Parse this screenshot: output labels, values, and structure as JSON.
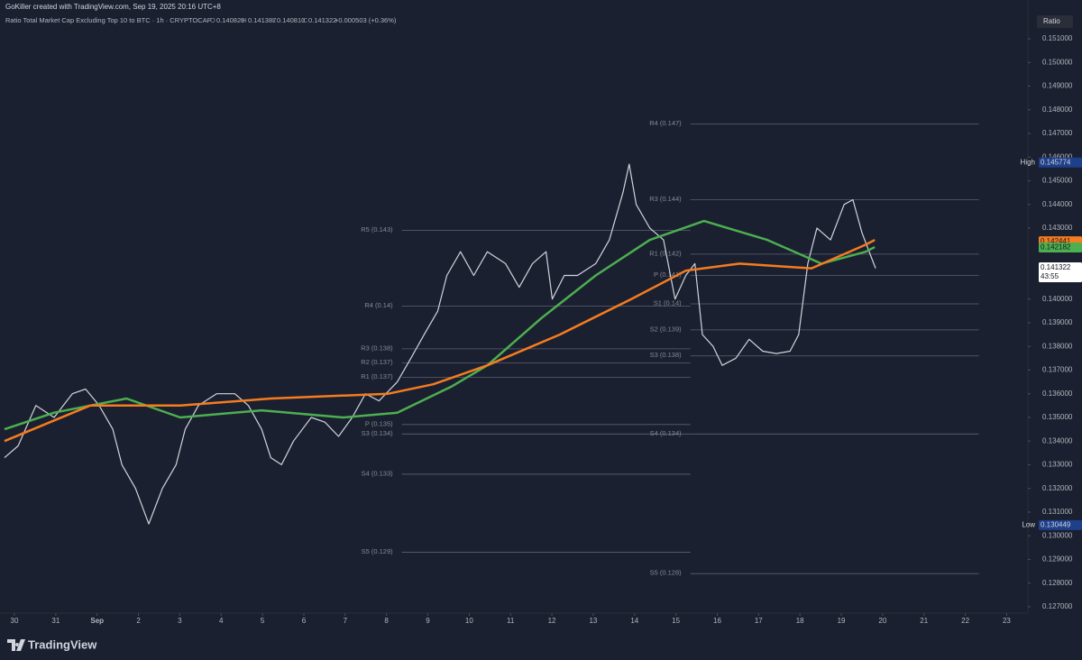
{
  "header": "GoKiller created with TradingView.com, Sep 19, 2025 20:16 UTC+8",
  "legend": {
    "title": "Ratio Total Market Cap Excluding Top 10 to BTC · 1h · CRYPTOCAP",
    "open_label": "O",
    "open": "0.140820",
    "high_label": "H",
    "high": "0.141387",
    "low_label": "L",
    "low": "0.140810",
    "close_label": "C",
    "close": "0.141322",
    "change": "+0.000503 (+0.36%)"
  },
  "footer": "TradingView",
  "chart_data": {
    "type": "line",
    "axis_label": "Ratio",
    "xlim": [
      -0.349,
      24.514
    ],
    "ylim": [
      0.12673,
      0.15264
    ],
    "xticks": [
      {
        "value": 0,
        "label": "30"
      },
      {
        "value": 1,
        "label": "31"
      },
      {
        "value": 2,
        "label": "Sep"
      },
      {
        "value": 3,
        "label": "2"
      },
      {
        "value": 4,
        "label": "3"
      },
      {
        "value": 5,
        "label": "4"
      },
      {
        "value": 6,
        "label": "5"
      },
      {
        "value": 7,
        "label": "6"
      },
      {
        "value": 8,
        "label": "7"
      },
      {
        "value": 9,
        "label": "8"
      },
      {
        "value": 10,
        "label": "9"
      },
      {
        "value": 11,
        "label": "10"
      },
      {
        "value": 12,
        "label": "11"
      },
      {
        "value": 13,
        "label": "12"
      },
      {
        "value": 14,
        "label": "13"
      },
      {
        "value": 15,
        "label": "14"
      },
      {
        "value": 16,
        "label": "15"
      },
      {
        "value": 17,
        "label": "16"
      },
      {
        "value": 18,
        "label": "17"
      },
      {
        "value": 19,
        "label": "18"
      },
      {
        "value": 20,
        "label": "19"
      },
      {
        "value": 21,
        "label": "20"
      },
      {
        "value": 22,
        "label": "21"
      },
      {
        "value": 23,
        "label": "22"
      },
      {
        "value": 24,
        "label": "23"
      }
    ],
    "yticks": [
      {
        "value": 0.151,
        "label": "0.151000"
      },
      {
        "value": 0.15,
        "label": "0.150000"
      },
      {
        "value": 0.149,
        "label": "0.149000"
      },
      {
        "value": 0.148,
        "label": "0.148000"
      },
      {
        "value": 0.147,
        "label": "0.147000"
      },
      {
        "value": 0.146,
        "label": "0.146000"
      },
      {
        "value": 0.145,
        "label": "0.145000"
      },
      {
        "value": 0.144,
        "label": "0.144000"
      },
      {
        "value": 0.143,
        "label": "0.143000"
      },
      {
        "value": 0.14,
        "label": "0.140000"
      },
      {
        "value": 0.139,
        "label": "0.139000"
      },
      {
        "value": 0.138,
        "label": "0.138000"
      },
      {
        "value": 0.137,
        "label": "0.137000"
      },
      {
        "value": 0.136,
        "label": "0.136000"
      },
      {
        "value": 0.135,
        "label": "0.135000"
      },
      {
        "value": 0.134,
        "label": "0.134000"
      },
      {
        "value": 0.133,
        "label": "0.133000"
      },
      {
        "value": 0.132,
        "label": "0.132000"
      },
      {
        "value": 0.131,
        "label": "0.131000"
      },
      {
        "value": 0.13,
        "label": "0.130000"
      },
      {
        "value": 0.129,
        "label": "0.129000"
      },
      {
        "value": 0.128,
        "label": "0.128000"
      },
      {
        "value": 0.127,
        "label": "0.127000"
      }
    ],
    "series": [
      {
        "color": "#d1d4dc",
        "width": 1.2,
        "x": [
          -0.24,
          0.09,
          0.52,
          0.96,
          1.4,
          1.72,
          2.05,
          2.38,
          2.6,
          2.93,
          3.25,
          3.58,
          3.91,
          4.13,
          4.45,
          4.89,
          5.33,
          5.66,
          5.98,
          6.2,
          6.46,
          6.75,
          7.18,
          7.51,
          7.84,
          8.17,
          8.49,
          8.82,
          9.26,
          9.59,
          9.91,
          10.24,
          10.46,
          10.79,
          11.11,
          11.44,
          11.88,
          12.21,
          12.53,
          12.86,
          13.01,
          13.3,
          13.62,
          14.06,
          14.39,
          14.72,
          14.87,
          15.04,
          15.37,
          15.7,
          15.98,
          16.24,
          16.46,
          16.64,
          16.9,
          17.12,
          17.45,
          17.77,
          18.1,
          18.43,
          18.76,
          18.97,
          19.19,
          19.41,
          19.74,
          20.07,
          20.28,
          20.5,
          20.72,
          20.83
        ],
        "values": [
          0.1333,
          0.1338,
          0.1355,
          0.135,
          0.136,
          0.1362,
          0.1355,
          0.1345,
          0.133,
          0.132,
          0.1305,
          0.132,
          0.133,
          0.1345,
          0.1355,
          0.136,
          0.136,
          0.1355,
          0.1345,
          0.1333,
          0.133,
          0.134,
          0.135,
          0.1348,
          0.1342,
          0.135,
          0.136,
          0.1357,
          0.1365,
          0.1375,
          0.1385,
          0.1395,
          0.141,
          0.142,
          0.141,
          0.142,
          0.1415,
          0.1405,
          0.1415,
          0.142,
          0.14,
          0.141,
          0.141,
          0.1415,
          0.1425,
          0.1445,
          0.1457,
          0.144,
          0.143,
          0.1425,
          0.14,
          0.141,
          0.1415,
          0.1385,
          0.138,
          0.1372,
          0.1375,
          0.1383,
          0.1378,
          0.1377,
          0.1378,
          0.1385,
          0.1415,
          0.143,
          0.1425,
          0.144,
          0.1442,
          0.1428,
          0.1418,
          0.1413
        ]
      },
      {
        "color": "#4caf50",
        "width": 2.5,
        "x": [
          -0.24,
          0.96,
          2.71,
          4.01,
          5.98,
          7.95,
          9.26,
          10.57,
          11.44,
          12.75,
          14.06,
          15.37,
          16.68,
          18.21,
          19.52,
          20.59,
          20.81
        ],
        "values": [
          0.1345,
          0.1352,
          0.1358,
          0.135,
          0.1353,
          0.135,
          0.1352,
          0.1363,
          0.1372,
          0.1392,
          0.141,
          0.1425,
          0.1433,
          0.1425,
          0.1415,
          0.142,
          0.1422
        ]
      },
      {
        "color": "#f57c1f",
        "width": 2.5,
        "x": [
          -0.24,
          1.83,
          4.01,
          6.2,
          9.04,
          10.13,
          11.44,
          13.19,
          14.92,
          16.24,
          17.54,
          19.28,
          20.59,
          20.81
        ],
        "values": [
          0.134,
          0.1355,
          0.1355,
          0.1358,
          0.136,
          0.1364,
          0.1372,
          0.1385,
          0.14,
          0.1412,
          0.1415,
          0.1413,
          0.1423,
          0.1425
        ]
      }
    ],
    "pivot_sets": [
      {
        "x_range": [
          9.37,
          16.35
        ],
        "levels": [
          {
            "label": "R5 (0.143)",
            "value": 0.1429
          },
          {
            "label": "R4 (0.14)",
            "value": 0.1397
          },
          {
            "label": "R3 (0.138)",
            "value": 0.1379
          },
          {
            "label": "R2 (0.137)",
            "value": 0.1373
          },
          {
            "label": "R1 (0.137)",
            "value": 0.1367
          },
          {
            "label": "P (0.135)",
            "value": 0.1347
          },
          {
            "label": "S3 (0.134)",
            "value": 0.1343
          },
          {
            "label": "S4 (0.133)",
            "value": 0.1326
          },
          {
            "label": "S5 (0.129)",
            "value": 0.1293
          }
        ]
      },
      {
        "x_range": [
          16.35,
          23.33
        ],
        "levels": [
          {
            "label": "R4 (0.147)",
            "value": 0.1474
          },
          {
            "label": "R3 (0.144)",
            "value": 0.1442
          },
          {
            "label": "R1 (0.142)",
            "value": 0.1419
          },
          {
            "label": "P (0.141)",
            "value": 0.141
          },
          {
            "label": "S1 (0.14)",
            "value": 0.1398
          },
          {
            "label": "S2 (0.139)",
            "value": 0.1387
          },
          {
            "label": "S3 (0.138)",
            "value": 0.1376
          },
          {
            "label": "S4 (0.134)",
            "value": 0.1343
          },
          {
            "label": "S5 (0.128)",
            "value": 0.1284
          }
        ]
      }
    ],
    "badges": [
      {
        "tag": "High",
        "value": 0.145774,
        "color": "#1e3f8a",
        "text_color": "#d1d4dc"
      },
      {
        "tag": "Low",
        "value": 0.130449,
        "color": "#1e3f8a",
        "text_color": "#d1d4dc"
      },
      {
        "value": 0.142441,
        "color": "#f57c1f",
        "text_color": "#131722"
      },
      {
        "value": 0.142182,
        "color": "#4caf50",
        "text_color": "#131722"
      },
      {
        "value": 0.141322,
        "countdown": "43:55",
        "color": "#ffffff",
        "text_color": "#131722"
      }
    ]
  }
}
